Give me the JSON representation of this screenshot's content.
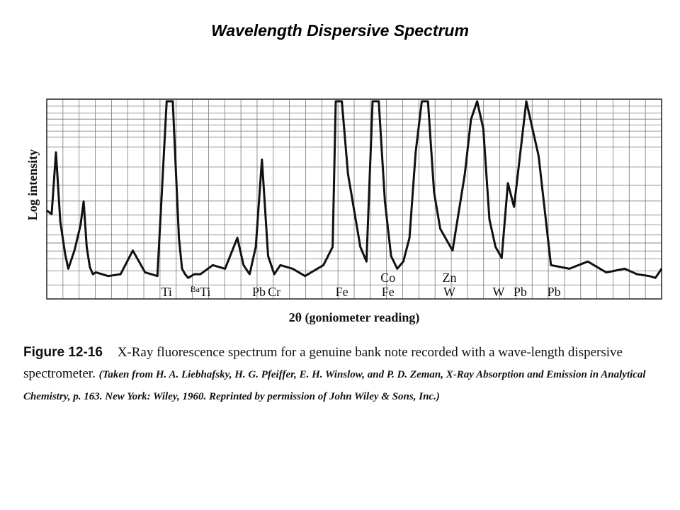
{
  "slide_title": "Wavelength Dispersive Spectrum",
  "caption": {
    "label": "Figure 12-16",
    "text": "X-Ray fluorescence spectrum for a genuine bank note recorded with a wave-length dispersive spectrometer.",
    "source": "(Taken from H. A. Liebhafsky, H. G. Pfeiffer, E. H. Winslow, and P. D. Zeman, X-Ray Absorption and Emission in Analytical Chemistry, p. 163. New York: Wiley, 1960. Reprinted by permission of John Wiley & Sons, Inc.)"
  },
  "chart_data": {
    "type": "line",
    "title": "",
    "xlabel": "2θ (goniometer reading)",
    "ylabel": "Log intensity",
    "grid": true,
    "xlim": [
      0,
      100
    ],
    "ylim": [
      0,
      100
    ],
    "series": [
      {
        "x": [
          0,
          0.8,
          1.5,
          2.2,
          3,
          3.5,
          4.5,
          5.5,
          6,
          6.5,
          7,
          7.5,
          8,
          10,
          12,
          14,
          16,
          18,
          19.5,
          20.5,
          21.5,
          22,
          22.5,
          23,
          23.5,
          24,
          25,
          27,
          29,
          31,
          32,
          33,
          34,
          35,
          36,
          37,
          38,
          40,
          42,
          45,
          46.5,
          47,
          48,
          49,
          51,
          52,
          53,
          54,
          55,
          56,
          57,
          58,
          59,
          60,
          61,
          62,
          63,
          64,
          66,
          68,
          69,
          70,
          71,
          72,
          73,
          74,
          75,
          76,
          78,
          80,
          82,
          85,
          88,
          91,
          94,
          96,
          98,
          99,
          100
        ],
        "values": [
          40,
          38,
          72,
          34,
          16,
          8,
          18,
          32,
          45,
          20,
          9,
          5,
          6,
          4,
          5,
          18,
          6,
          4,
          100,
          100,
          25,
          8,
          5,
          3,
          4,
          5,
          5,
          10,
          8,
          25,
          10,
          5,
          20,
          68,
          15,
          5,
          10,
          8,
          4,
          10,
          20,
          100,
          100,
          60,
          20,
          12,
          100,
          100,
          45,
          15,
          8,
          12,
          25,
          72,
          100,
          100,
          50,
          30,
          18,
          60,
          90,
          100,
          85,
          35,
          20,
          14,
          55,
          42,
          100,
          70,
          10,
          8,
          12,
          6,
          8,
          5,
          4,
          3,
          8
        ]
      }
    ],
    "peak_labels": [
      {
        "x": 19.5,
        "label": "Ti"
      },
      {
        "x": 25,
        "label": "Ti",
        "prefix": "Ba"
      },
      {
        "x": 34.5,
        "label": "Pb"
      },
      {
        "x": 37,
        "label": "Cr"
      },
      {
        "x": 48,
        "label": "Fe"
      },
      {
        "x": 55.5,
        "label": "Fe",
        "above": "Co"
      },
      {
        "x": 65.5,
        "label": "W",
        "above": "Zn"
      },
      {
        "x": 73.5,
        "label": "W"
      },
      {
        "x": 77,
        "label": "Pb"
      },
      {
        "x": 82.5,
        "label": "Pb"
      }
    ]
  }
}
